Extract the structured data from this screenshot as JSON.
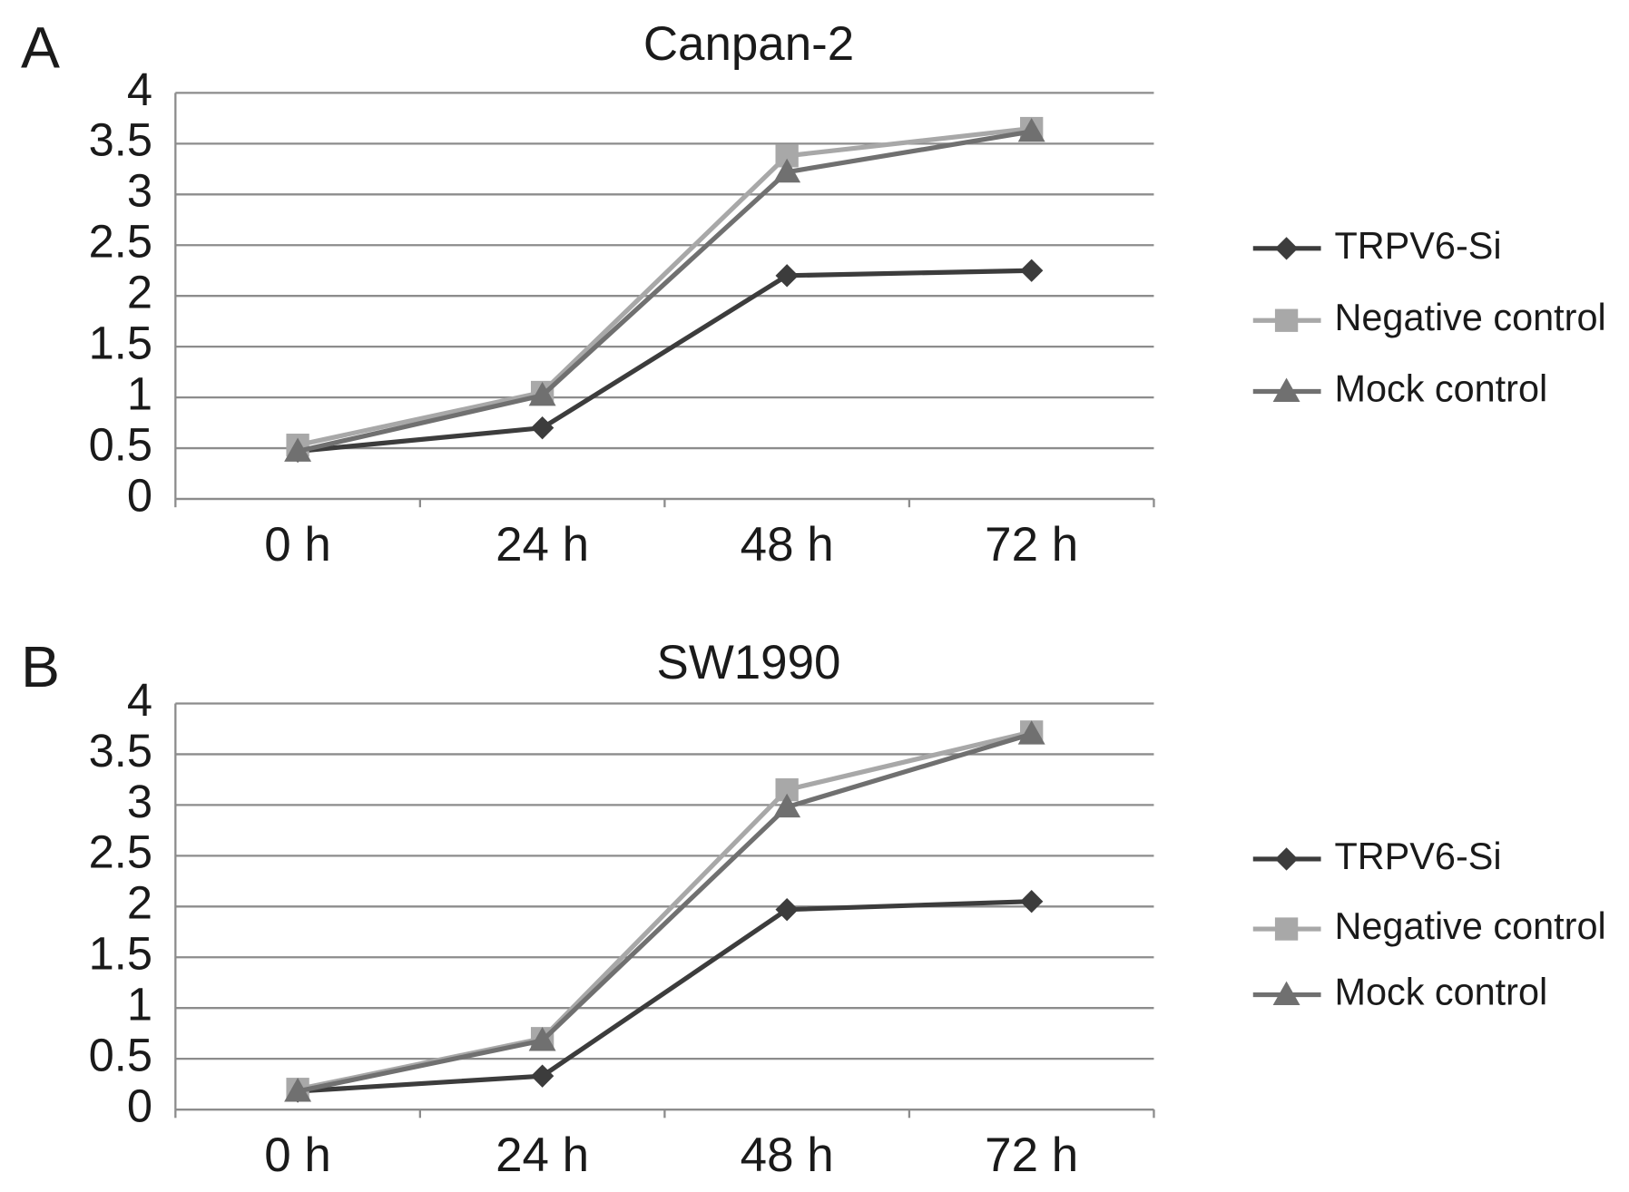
{
  "chart_data": [
    {
      "type": "line",
      "panel": "A",
      "title": "Canpan-2",
      "categories": [
        "0 h",
        "24 h",
        "48 h",
        "72 h"
      ],
      "series": [
        {
          "name": "TRPV6-Si",
          "color": "#3c3c3c",
          "marker": "diamond",
          "values": [
            0.47,
            0.7,
            2.2,
            2.25
          ]
        },
        {
          "name": "Negative control",
          "color": "#a8a8a8",
          "marker": "square",
          "values": [
            0.53,
            1.05,
            3.38,
            3.65
          ]
        },
        {
          "name": "Mock control",
          "color": "#707070",
          "marker": "triangle",
          "values": [
            0.47,
            1.02,
            3.22,
            3.62
          ]
        }
      ],
      "ylim": [
        0,
        4
      ],
      "yticks": [
        0,
        0.5,
        1,
        1.5,
        2,
        2.5,
        3,
        3.5,
        4
      ],
      "grid": true,
      "legend": "right"
    },
    {
      "type": "line",
      "panel": "B",
      "title": "SW1990",
      "categories": [
        "0 h",
        "24 h",
        "48 h",
        "72 h"
      ],
      "series": [
        {
          "name": "TRPV6-Si",
          "color": "#3c3c3c",
          "marker": "diamond",
          "values": [
            0.18,
            0.33,
            1.97,
            2.05
          ]
        },
        {
          "name": "Negative control",
          "color": "#a8a8a8",
          "marker": "square",
          "values": [
            0.2,
            0.7,
            3.15,
            3.72
          ]
        },
        {
          "name": "Mock control",
          "color": "#707070",
          "marker": "triangle",
          "values": [
            0.18,
            0.68,
            2.98,
            3.7
          ]
        }
      ],
      "ylim": [
        0,
        4
      ],
      "yticks": [
        0,
        0.5,
        1,
        1.5,
        2,
        2.5,
        3,
        3.5,
        4
      ],
      "grid": true,
      "legend": "right"
    }
  ]
}
